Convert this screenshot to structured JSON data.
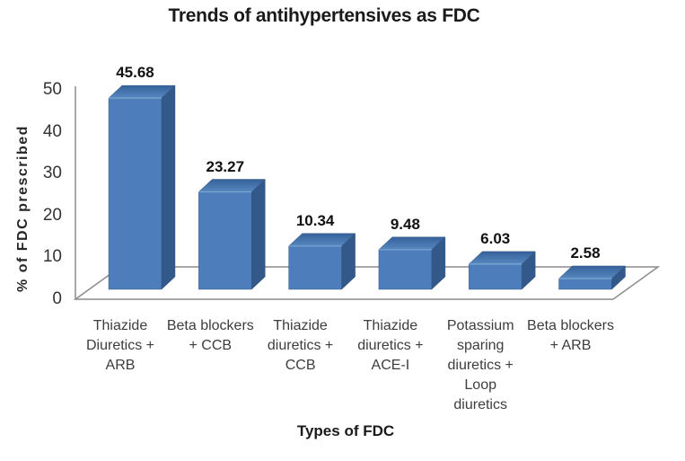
{
  "chart_data": {
    "type": "bar",
    "style": "3d-column",
    "title": "Trends of antihypertensives as FDC",
    "xlabel": "Types of FDC",
    "ylabel": "% of FDC prescribed",
    "categories": [
      "Thiazide Diuretics + ARB",
      "Beta blockers + CCB",
      "Thiazide diuretics + CCB",
      "Thiazide diuretics + ACE-I",
      "Potassium sparing diuretics + Loop diuretics",
      "Beta blockers + ARB"
    ],
    "values": [
      45.68,
      23.27,
      10.34,
      9.48,
      6.03,
      2.58
    ],
    "value_labels": [
      "45.68",
      "23.27",
      "10.34",
      "9.48",
      "6.03",
      "2.58"
    ],
    "yticks": [
      0,
      10,
      20,
      30,
      40,
      50
    ],
    "ylim": [
      0,
      50
    ],
    "grid": false,
    "legend": "none",
    "colors": {
      "bar_front": "#4d7ebb",
      "bar_top_front": "#5788bf",
      "bar_top_back": "#35619a",
      "bar_side": "#33598b",
      "bar_edge_light": "#7ea6d2",
      "bar_outline": "#2f517e",
      "axis_line": "#8c8c8c",
      "background": "#ffffff"
    }
  }
}
